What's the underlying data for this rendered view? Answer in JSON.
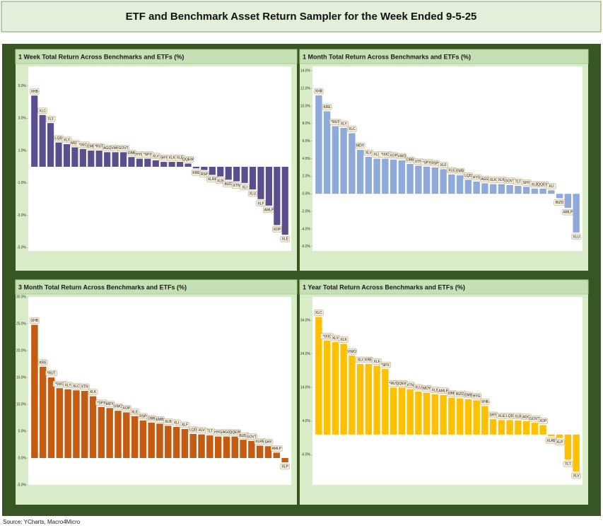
{
  "title": "ETF and Benchmark Asset Return Sampler for the Week Ended 9-5-25",
  "source": "Source: YCharts, Macro4Micro",
  "chart_data": [
    {
      "type": "bar",
      "title": "1 Week Total Return Across Benchmarks and ETFs (%)",
      "color": "#5a4e8e",
      "categories": [
        "XHB",
        "XLC",
        "TLT",
        "LQD",
        "XLY",
        "MDY",
        "*IXIC",
        "EMB",
        "*RUT",
        "AGG",
        "VWO",
        "GOVT",
        "DBB",
        "HYG",
        "*SPX",
        "XLV",
        "SHY",
        "XLK",
        "XLE",
        "QQEW",
        "KRE",
        "RSP",
        "XLRE",
        "XLB",
        "BIZD",
        "XTN",
        "XLI",
        "XLU",
        "XLF",
        "AMLP",
        "XOP",
        "XLE"
      ],
      "values": [
        4.4,
        3.2,
        2.7,
        1.5,
        1.4,
        1.2,
        1.1,
        1.0,
        1.0,
        0.9,
        0.9,
        0.9,
        0.6,
        0.5,
        0.5,
        0.4,
        0.3,
        0.3,
        0.3,
        0.2,
        -0.1,
        -0.2,
        -0.5,
        -0.6,
        -0.8,
        -0.9,
        -1.0,
        -1.4,
        -2.0,
        -2.4,
        -3.6,
        -4.2
      ],
      "ylim": [
        -5.2,
        6.2
      ],
      "yticks": [
        {
          "value": 5,
          "label": "5.0%"
        },
        {
          "value": 3,
          "label": "3.0%"
        },
        {
          "value": 1,
          "label": "1.0%"
        },
        {
          "value": -1,
          "label": "-1.0%"
        },
        {
          "value": -3,
          "label": "-3.0%"
        },
        {
          "value": -5,
          "label": "-5.0%"
        }
      ]
    },
    {
      "type": "bar",
      "title": "1 Month Total Return Across Benchmarks and ETFs (%)",
      "color": "#8eaadb",
      "categories": [
        "XHB",
        "KRE",
        "*RUT",
        "XLY",
        "XLC",
        "MDY",
        "XLV",
        "XLB",
        "*IXIC",
        "XOP",
        "VWO",
        "DBB",
        "XTN",
        "*SPX",
        "RSP",
        "XLF",
        "XLE",
        "EMB",
        "LQD",
        "HYG",
        "AGG",
        "XLK",
        "XLR",
        "GOVT",
        "TLT",
        "SHY",
        "XLE",
        "QQEW",
        "XLI",
        "BIZD",
        "AMLP",
        "XLU"
      ],
      "values": [
        11.2,
        9.4,
        7.7,
        7.5,
        6.9,
        5.0,
        4.2,
        4.0,
        4.0,
        3.9,
        3.8,
        3.4,
        3.2,
        3.1,
        3.0,
        2.8,
        2.2,
        2.1,
        1.6,
        1.4,
        1.2,
        1.1,
        1.1,
        1.0,
        0.9,
        0.8,
        0.6,
        0.6,
        0.4,
        -0.5,
        -1.6,
        -4.4
      ],
      "ylim": [
        -6.5,
        14.5
      ],
      "yticks": [
        {
          "value": 14,
          "label": "14.0%"
        },
        {
          "value": 12,
          "label": "12.0%"
        },
        {
          "value": 10,
          "label": "10.0%"
        },
        {
          "value": 8,
          "label": "8.0%"
        },
        {
          "value": 6,
          "label": "6.0%"
        },
        {
          "value": 4,
          "label": "4.0%"
        },
        {
          "value": 2,
          "label": "2.0%"
        },
        {
          "value": 0,
          "label": "0.0%"
        },
        {
          "value": -2,
          "label": "-2.0%"
        },
        {
          "value": -4,
          "label": "-4.0%"
        },
        {
          "value": -6,
          "label": "-6.0%"
        }
      ]
    },
    {
      "type": "bar",
      "title": "3 Month Total Return Across Benchmarks and ETFs (%)",
      "color": "#c55a11",
      "categories": [
        "XHB",
        "KRE",
        "*RUT",
        "*IXIC",
        "XLY",
        "XLC",
        "XTN",
        "XLK",
        "*SPX",
        "MDY",
        "VWO",
        "XOP",
        "XLE",
        "RSP",
        "DBB",
        "EMB",
        "XLB",
        "XLI",
        "XLF",
        "LQD",
        "XLV",
        "TLT",
        "HYG",
        "AGG",
        "QQEW",
        "BIZD",
        "GOVT",
        "XLRE",
        "SHY",
        "AMLP",
        "XLP"
      ],
      "values": [
        24.8,
        17.0,
        15.0,
        13.0,
        12.8,
        12.6,
        12.5,
        11.5,
        9.5,
        9.3,
        8.8,
        8.5,
        7.8,
        7.0,
        6.6,
        6.4,
        6.0,
        5.8,
        5.4,
        4.5,
        4.4,
        4.2,
        4.0,
        4.0,
        4.0,
        3.4,
        3.2,
        2.3,
        2.2,
        1.0,
        -0.8
      ],
      "ylim": [
        -5,
        30
      ],
      "yticks": [
        {
          "value": 30,
          "label": "30.0%"
        },
        {
          "value": 25,
          "label": "25.0%"
        },
        {
          "value": 20,
          "label": "20.0%"
        },
        {
          "value": 15,
          "label": "15.0%"
        },
        {
          "value": 10,
          "label": "10.0%"
        },
        {
          "value": 5,
          "label": "5.0%"
        },
        {
          "value": 0,
          "label": "0.0%"
        },
        {
          "value": -5,
          "label": "-5.0%"
        }
      ]
    },
    {
      "type": "bar",
      "title": "1 Year Total Return Across Benchmarks and ETFs (%)",
      "color": "#ffc000",
      "categories": [
        "XLC",
        "*IXIC",
        "XLY",
        "XLK",
        "VWO",
        "XLI",
        "KRE",
        "XLF",
        "*SPX",
        "*RUT",
        "QQEW",
        "XTN",
        "XLU",
        "MDY",
        "XLB",
        "AMLP",
        "DBB",
        "BIZD",
        "EMB",
        "HYG",
        "XHB",
        "SHY",
        "XLE",
        "LQD",
        "XLB",
        "AGG",
        "GOVT",
        "XOP",
        "XLRE",
        "XLP",
        "TLT",
        "XLV"
      ],
      "values": [
        35.0,
        28.0,
        27.5,
        27.0,
        23.5,
        21.0,
        21.0,
        20.5,
        19.5,
        14.0,
        14.0,
        13.5,
        12.8,
        12.5,
        12.0,
        11.8,
        11.0,
        10.8,
        10.5,
        10.2,
        8.5,
        4.6,
        4.3,
        4.3,
        4.2,
        4.0,
        3.5,
        2.8,
        -0.5,
        -1.0,
        -7.5,
        -11.0
      ],
      "ylim": [
        -15,
        41
      ],
      "yticks": [
        {
          "value": 34,
          "label": "34.0%"
        },
        {
          "value": 24,
          "label": "24.0%"
        },
        {
          "value": 14,
          "label": "14.0%"
        },
        {
          "value": 4,
          "label": "4.0%"
        },
        {
          "value": -6,
          "label": "-6.0%"
        }
      ]
    }
  ]
}
